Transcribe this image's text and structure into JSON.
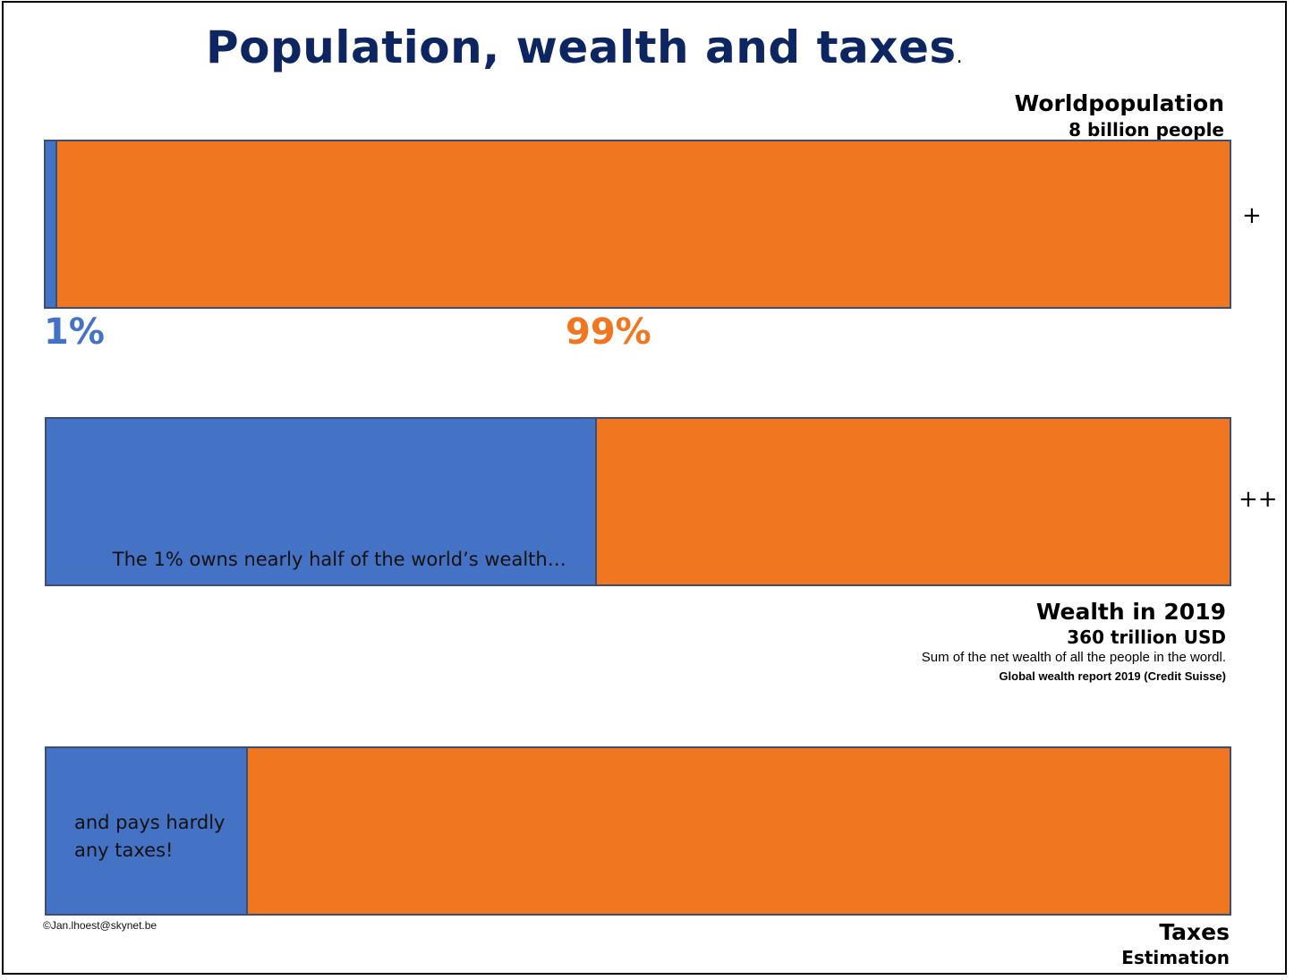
{
  "title": "Population, wealth and taxes",
  "title_dot": ".",
  "colors": {
    "top_1pct": "#4472c4",
    "rest_99pct": "#f07620",
    "title": "#0d2561"
  },
  "chart_data": [
    {
      "type": "bar",
      "orientation": "horizontal-stacked-100",
      "title": "Worldpopulation",
      "subtitle": "8 billion people",
      "segments": [
        {
          "label": "1%",
          "value": 1
        },
        {
          "label": "99%",
          "value": 99
        }
      ],
      "marker": "+"
    },
    {
      "type": "bar",
      "orientation": "horizontal-stacked-100",
      "title": "Wealth in 2019",
      "subtitle": "360 trillion USD",
      "note": "Sum of the net wealth of all the people in the wordl.",
      "source": "Global wealth report 2019 (Credit Suisse)",
      "annotation": "The 1% owns nearly half of the world’s wealth…",
      "segments": [
        {
          "value": 46.5
        },
        {
          "value": 53.5
        }
      ],
      "marker": "++"
    },
    {
      "type": "bar",
      "orientation": "horizontal-stacked-100",
      "title": "Taxes",
      "subtitle": "Estimation",
      "annotation_lines": [
        "and pays hardly",
        "any taxes!"
      ],
      "segments": [
        {
          "value": 17
        },
        {
          "value": 83
        }
      ]
    }
  ],
  "copyright": "©Jan.lhoest@skynet.be"
}
